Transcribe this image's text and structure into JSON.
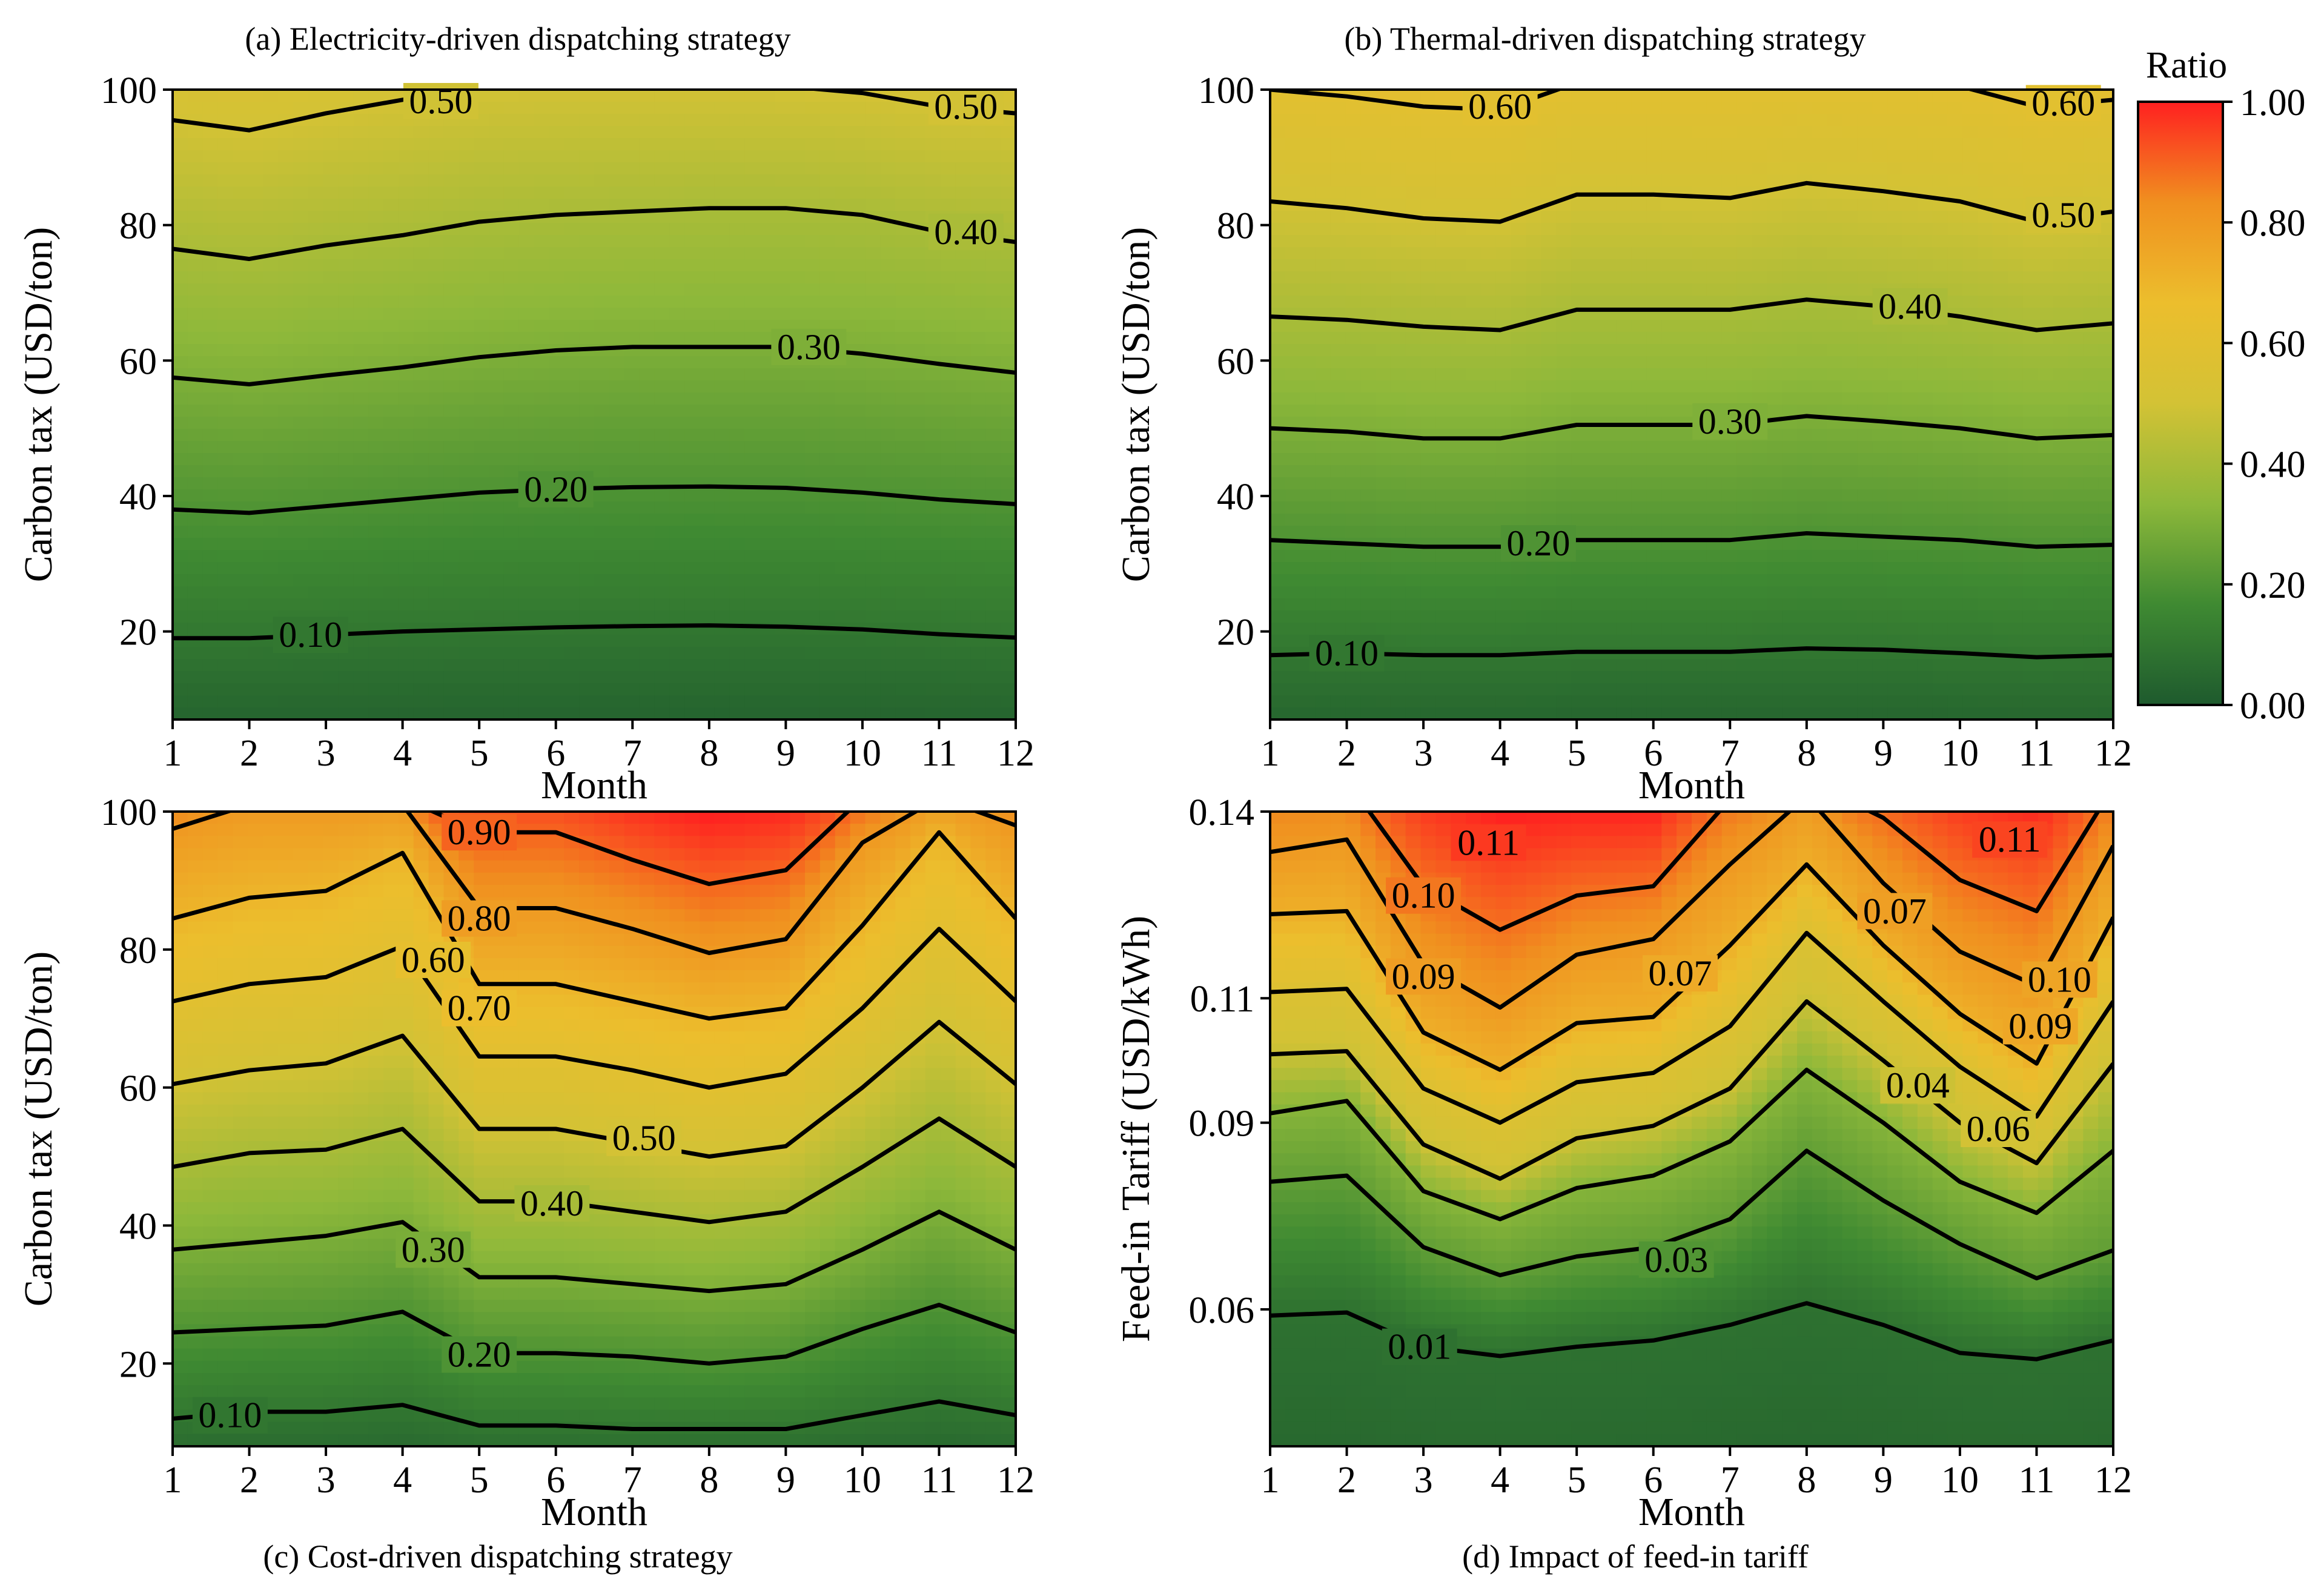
{
  "colors": {
    "scale": [
      "#1e5a2e",
      "#3f8a32",
      "#8db83a",
      "#d3c235",
      "#ecbe2d",
      "#f0901f",
      "#ff2020"
    ],
    "line": "#000000",
    "background": "#ffffff"
  },
  "colorbar": {
    "title": "Ratio",
    "min": 0,
    "max": 1,
    "ticks": [
      "0.00",
      "0.20",
      "0.40",
      "0.60",
      "0.80",
      "1.00"
    ]
  },
  "chart_data": [
    {
      "id": "a",
      "type": "contour",
      "title": "(a) Electricity-driven dispatching strategy",
      "xlabel": "Month",
      "ylabel": "Carbon tax (USD/ton)",
      "x": [
        1,
        2,
        3,
        4,
        5,
        6,
        7,
        8,
        9,
        10,
        11,
        12
      ],
      "xticks": [
        "1",
        "2",
        "3",
        "4",
        "5",
        "6",
        "7",
        "8",
        "9",
        "10",
        "11",
        "12"
      ],
      "ylim": [
        7,
        100
      ],
      "yticks": [
        20,
        40,
        60,
        80,
        100
      ],
      "ytick_labels": [
        "20",
        "40",
        "60",
        "80",
        "100"
      ],
      "color_scale": 1.0,
      "levels": [
        {
          "label": "0.10",
          "value": 0.1,
          "y": [
            19,
            19,
            19.5,
            20,
            20.3,
            20.6,
            20.8,
            20.9,
            20.7,
            20.3,
            19.6,
            19.1
          ]
        },
        {
          "label": "0.20",
          "value": 0.2,
          "y": [
            38,
            37.5,
            38.5,
            39.5,
            40.5,
            41,
            41.3,
            41.4,
            41.2,
            40.5,
            39.5,
            38.8
          ]
        },
        {
          "label": "0.30",
          "value": 0.3,
          "y": [
            57.5,
            56.5,
            57.8,
            59,
            60.5,
            61.5,
            62,
            62,
            62,
            61,
            59.5,
            58.2
          ]
        },
        {
          "label": "0.40",
          "value": 0.4,
          "y": [
            76.5,
            75,
            77,
            78.5,
            80.5,
            81.5,
            82,
            82.5,
            82.5,
            81.5,
            79,
            77.5
          ]
        },
        {
          "label": "0.50",
          "value": 0.5,
          "y": [
            95.5,
            94,
            96.5,
            98.5,
            100.5,
            101,
            101,
            101,
            100.5,
            99.5,
            97.5,
            96.5
          ]
        }
      ],
      "contour_labels": [
        {
          "text": "0.10",
          "x": 2.8,
          "y": 19.5
        },
        {
          "text": "0.20",
          "x": 6.0,
          "y": 41
        },
        {
          "text": "0.30",
          "x": 9.3,
          "y": 62
        },
        {
          "text": "0.40",
          "x": 11.35,
          "y": 79
        },
        {
          "text": "0.50",
          "x": 4.5,
          "y": 98.3
        },
        {
          "text": "0.50",
          "x": 11.35,
          "y": 97.5
        }
      ]
    },
    {
      "id": "b",
      "type": "contour",
      "title": "(b) Thermal-driven dispatching strategy",
      "xlabel": "Month",
      "ylabel": "Carbon tax (USD/ton)",
      "x": [
        1,
        2,
        3,
        4,
        5,
        6,
        7,
        8,
        9,
        10,
        11,
        12
      ],
      "xticks": [
        "1",
        "2",
        "3",
        "4",
        "5",
        "6",
        "7",
        "8",
        "9",
        "10",
        "11",
        "12"
      ],
      "ylim": [
        7,
        100
      ],
      "yticks": [
        20,
        40,
        60,
        80,
        100
      ],
      "ytick_labels": [
        "20",
        "40",
        "60",
        "80",
        "100"
      ],
      "color_scale": 1.0,
      "levels": [
        {
          "label": "0.10",
          "value": 0.1,
          "y": [
            16.5,
            16.8,
            16.5,
            16.5,
            17,
            17,
            17,
            17.5,
            17.3,
            16.8,
            16.2,
            16.5
          ]
        },
        {
          "label": "0.20",
          "value": 0.2,
          "y": [
            33.5,
            33,
            32.5,
            32.5,
            33.5,
            33.5,
            33.5,
            34.5,
            34,
            33.5,
            32.5,
            32.8
          ]
        },
        {
          "label": "0.30",
          "value": 0.3,
          "y": [
            50,
            49.5,
            48.5,
            48.5,
            50.5,
            50.5,
            50.5,
            51.8,
            51,
            50,
            48.5,
            49
          ]
        },
        {
          "label": "0.40",
          "value": 0.4,
          "y": [
            66.5,
            66,
            65,
            64.5,
            67.5,
            67.5,
            67.5,
            69,
            68,
            66.5,
            64.5,
            65.5
          ]
        },
        {
          "label": "0.50",
          "value": 0.5,
          "y": [
            83.5,
            82.5,
            81,
            80.5,
            84.5,
            84.5,
            84,
            86.2,
            85,
            83.5,
            80.5,
            82
          ]
        },
        {
          "label": "0.60",
          "value": 0.6,
          "y": [
            100,
            99,
            97.5,
            97,
            101,
            101,
            101,
            101.5,
            101,
            100.5,
            97.5,
            98.5
          ]
        }
      ],
      "contour_labels": [
        {
          "text": "0.10",
          "x": 2.0,
          "y": 16.8
        },
        {
          "text": "0.20",
          "x": 4.5,
          "y": 33
        },
        {
          "text": "0.30",
          "x": 7.0,
          "y": 51
        },
        {
          "text": "0.40",
          "x": 9.35,
          "y": 68
        },
        {
          "text": "0.50",
          "x": 11.35,
          "y": 81.5
        },
        {
          "text": "0.60",
          "x": 4.0,
          "y": 97.5
        },
        {
          "text": "0.60",
          "x": 11.35,
          "y": 98
        }
      ]
    },
    {
      "id": "c",
      "type": "contour",
      "title": "(c) Cost-driven dispatching strategy",
      "xlabel": "Month",
      "ylabel": "Carbon tax (USD/ton)",
      "x": [
        1,
        2,
        3,
        4,
        5,
        6,
        7,
        8,
        9,
        10,
        11,
        12
      ],
      "xticks": [
        "1",
        "2",
        "3",
        "4",
        "5",
        "6",
        "7",
        "8",
        "9",
        "10",
        "11",
        "12"
      ],
      "ylim": [
        8,
        100
      ],
      "yticks": [
        20,
        40,
        60,
        80,
        100
      ],
      "ytick_labels": [
        "20",
        "40",
        "60",
        "80",
        "100"
      ],
      "color_scale": 1.0,
      "levels": [
        {
          "label": "0.10",
          "value": 0.1,
          "y": [
            12,
            13,
            13,
            14,
            11,
            11,
            10.5,
            10.5,
            10.5,
            12.5,
            14.5,
            12.5
          ]
        },
        {
          "label": "0.20",
          "value": 0.2,
          "y": [
            24.5,
            25,
            25.5,
            27.5,
            21.5,
            21.5,
            21,
            20,
            21,
            25,
            28.5,
            24.5
          ]
        },
        {
          "label": "0.30",
          "value": 0.3,
          "y": [
            36.5,
            37.5,
            38.5,
            40.5,
            32.5,
            32.5,
            31.5,
            30.5,
            31.5,
            36.5,
            42,
            36.5
          ]
        },
        {
          "label": "0.40",
          "value": 0.4,
          "y": [
            48.5,
            50.5,
            51,
            54,
            43.5,
            43.5,
            42,
            40.5,
            42,
            48.5,
            55.5,
            48.5
          ]
        },
        {
          "label": "0.50",
          "value": 0.5,
          "y": [
            60.5,
            62.5,
            63.5,
            67.5,
            54,
            54,
            52,
            50,
            51.5,
            60,
            69.5,
            60.5
          ]
        },
        {
          "label": "0.60",
          "value": 0.6,
          "y": [
            72.5,
            75,
            76,
            80.5,
            64.5,
            64.5,
            62.5,
            60,
            62,
            71.5,
            83,
            72.5
          ]
        },
        {
          "label": "0.70",
          "value": 0.7,
          "y": [
            84.5,
            87.5,
            88.5,
            94,
            75,
            75,
            72.5,
            70,
            71.5,
            83.5,
            97,
            84.5
          ]
        },
        {
          "label": "0.80",
          "value": 0.8,
          "y": [
            97.5,
            101,
            101,
            101,
            86,
            86,
            83,
            79.5,
            81.5,
            95.5,
            102,
            98
          ]
        },
        {
          "label": "0.90",
          "value": 0.9,
          "y": [
            102,
            102,
            102,
            102,
            97,
            97,
            93,
            89.5,
            91.5,
            102,
            102,
            102
          ]
        }
      ],
      "contour_labels": [
        {
          "text": "0.10",
          "x": 1.75,
          "y": 12.5
        },
        {
          "text": "0.20",
          "x": 5.0,
          "y": 21.3
        },
        {
          "text": "0.30",
          "x": 4.4,
          "y": 36.5
        },
        {
          "text": "0.40",
          "x": 5.95,
          "y": 43.2
        },
        {
          "text": "0.50",
          "x": 7.15,
          "y": 52.7
        },
        {
          "text": "0.60",
          "x": 4.4,
          "y": 78.5
        },
        {
          "text": "0.70",
          "x": 5.0,
          "y": 71.5
        },
        {
          "text": "0.80",
          "x": 5.0,
          "y": 84.5
        },
        {
          "text": "0.90",
          "x": 5.0,
          "y": 97
        }
      ]
    },
    {
      "id": "d",
      "type": "contour",
      "title": "(d) Impact of feed-in tariff",
      "xlabel": "Month",
      "ylabel": "Feed-in Tariff (USD/kWh)",
      "x": [
        1,
        2,
        3,
        4,
        5,
        6,
        7,
        8,
        9,
        10,
        11,
        12
      ],
      "xticks": [
        "1",
        "2",
        "3",
        "4",
        "5",
        "6",
        "7",
        "8",
        "9",
        "10",
        "11",
        "12"
      ],
      "ylim": [
        0.038,
        0.14
      ],
      "yticks": [
        0.06,
        0.09,
        0.11,
        0.14
      ],
      "ytick_labels": [
        "0.06",
        "0.09",
        "0.11",
        "0.14"
      ],
      "color_scale": 8.0,
      "levels": [
        {
          "label": "0.01",
          "value": 0.01,
          "y": [
            0.059,
            0.0595,
            0.054,
            0.0525,
            0.054,
            0.055,
            0.0575,
            0.061,
            0.0575,
            0.053,
            0.052,
            0.055
          ]
        },
        {
          "label": "0.03",
          "value": 0.03,
          "y": [
            0.0805,
            0.0815,
            0.07,
            0.0655,
            0.0685,
            0.07,
            0.0745,
            0.0855,
            0.0775,
            0.0705,
            0.065,
            0.0695
          ]
        },
        {
          "label": "0.04",
          "value": 0.04,
          "y": [
            0.0915,
            0.0935,
            0.079,
            0.0745,
            0.0795,
            0.0815,
            0.087,
            0.0985,
            0.09,
            0.0805,
            0.0755,
            0.0855
          ]
        },
        {
          "label": "0.06",
          "value": 0.06,
          "y": [
            0.101,
            0.1015,
            0.0865,
            0.081,
            0.0875,
            0.0895,
            0.0955,
            0.1095,
            0.1,
            0.09,
            0.0835,
            0.0995
          ]
        },
        {
          "label": "0.07",
          "value": 0.07,
          "y": [
            0.111,
            0.1115,
            0.0955,
            0.09,
            0.0965,
            0.098,
            0.1055,
            0.1205,
            0.1095,
            0.099,
            0.091,
            0.1095
          ]
        },
        {
          "label": "0.09",
          "value": 0.09,
          "y": [
            0.1235,
            0.124,
            0.1045,
            0.0985,
            0.106,
            0.107,
            0.1185,
            0.1315,
            0.1185,
            0.1075,
            0.0995,
            0.123
          ]
        },
        {
          "label": "0.10",
          "value": 0.1,
          "y": [
            0.1335,
            0.1355,
            0.1155,
            0.1085,
            0.117,
            0.1195,
            0.1315,
            0.1425,
            0.1285,
            0.1175,
            0.112,
            0.1345
          ]
        },
        {
          "label": "0.11",
          "value": 0.11,
          "y": [
            0.145,
            0.145,
            0.128,
            0.121,
            0.1265,
            0.128,
            0.142,
            0.145,
            0.139,
            0.129,
            0.124,
            0.144
          ]
        }
      ],
      "contour_labels": [
        {
          "text": "0.01",
          "x": 2.95,
          "y": 0.054
        },
        {
          "text": "0.03",
          "x": 6.3,
          "y": 0.068
        },
        {
          "text": "0.04",
          "x": 9.45,
          "y": 0.096
        },
        {
          "text": "0.06",
          "x": 10.5,
          "y": 0.089
        },
        {
          "text": "0.07",
          "x": 6.35,
          "y": 0.114
        },
        {
          "text": "0.07",
          "x": 9.15,
          "y": 0.124
        },
        {
          "text": "0.09",
          "x": 3.0,
          "y": 0.1135
        },
        {
          "text": "0.09",
          "x": 11.05,
          "y": 0.1055
        },
        {
          "text": "0.10",
          "x": 3.0,
          "y": 0.1265
        },
        {
          "text": "0.10",
          "x": 11.3,
          "y": 0.113
        },
        {
          "text": "0.11",
          "x": 3.85,
          "y": 0.135
        },
        {
          "text": "0.11",
          "x": 10.65,
          "y": 0.1355
        }
      ]
    }
  ]
}
